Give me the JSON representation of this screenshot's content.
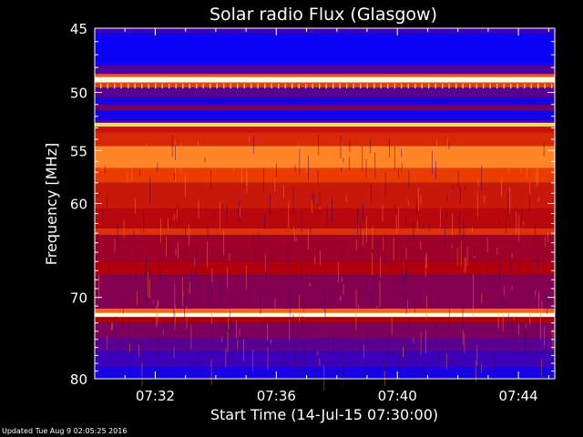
{
  "chart_data": {
    "type": "heatmap",
    "title": "Solar radio Flux (Glasgow)",
    "xlabel": "Start Time (14-Jul-15 07:30:00)",
    "ylabel": "Frequency [MHz]",
    "x_unit": "minutes after 07:30:00",
    "xlim": [
      0,
      15.2
    ],
    "ylim": [
      45,
      80
    ],
    "y_scale": "log",
    "x_ticks": [
      {
        "value": 2,
        "label": "07:32"
      },
      {
        "value": 6,
        "label": "07:36"
      },
      {
        "value": 10,
        "label": "07:40"
      },
      {
        "value": 14,
        "label": "07:44"
      }
    ],
    "y_ticks": [
      {
        "value": 45,
        "label": "45"
      },
      {
        "value": 50,
        "label": "50"
      },
      {
        "value": 55,
        "label": "55"
      },
      {
        "value": 60,
        "label": "60"
      },
      {
        "value": 70,
        "label": "70"
      },
      {
        "value": 80,
        "label": "80"
      }
    ],
    "colormap": [
      "#0000ff",
      "#5a0090",
      "#b00010",
      "#ff5000",
      "#ffff80",
      "#ffffff"
    ],
    "bands": [
      {
        "from": 45.0,
        "to": 45.4,
        "level": 0.12
      },
      {
        "from": 45.4,
        "to": 47.8,
        "level": 0.02
      },
      {
        "from": 47.8,
        "to": 48.5,
        "level": 0.18
      },
      {
        "from": 48.5,
        "to": 48.75,
        "level": 0.6
      },
      {
        "from": 48.75,
        "to": 49.2,
        "level": 0.97
      },
      {
        "from": 49.2,
        "to": 49.6,
        "level": 0.55
      },
      {
        "from": 49.6,
        "to": 50.4,
        "level": 0.2
      },
      {
        "from": 50.4,
        "to": 51.0,
        "level": 0.05
      },
      {
        "from": 51.0,
        "to": 51.5,
        "level": 0.25
      },
      {
        "from": 51.5,
        "to": 52.3,
        "level": 0.04
      },
      {
        "from": 52.3,
        "to": 52.55,
        "level": 0.15
      },
      {
        "from": 52.55,
        "to": 52.9,
        "level": 0.75
      },
      {
        "from": 52.9,
        "to": 53.4,
        "level": 0.45
      },
      {
        "from": 53.4,
        "to": 54.6,
        "level": 0.5
      },
      {
        "from": 54.6,
        "to": 56.6,
        "level": 0.66
      },
      {
        "from": 56.6,
        "to": 58.0,
        "level": 0.55
      },
      {
        "from": 58.0,
        "to": 60.5,
        "level": 0.46
      },
      {
        "from": 60.5,
        "to": 62.5,
        "level": 0.42
      },
      {
        "from": 62.5,
        "to": 63.2,
        "level": 0.52
      },
      {
        "from": 63.2,
        "to": 66.0,
        "level": 0.36
      },
      {
        "from": 66.0,
        "to": 67.5,
        "level": 0.4
      },
      {
        "from": 67.5,
        "to": 71.3,
        "level": 0.3
      },
      {
        "from": 71.3,
        "to": 71.8,
        "level": 0.62
      },
      {
        "from": 71.8,
        "to": 72.3,
        "level": 0.95
      },
      {
        "from": 72.3,
        "to": 73.0,
        "level": 0.4
      },
      {
        "from": 73.0,
        "to": 74.8,
        "level": 0.28
      },
      {
        "from": 74.8,
        "to": 76.5,
        "level": 0.2
      },
      {
        "from": 76.5,
        "to": 78.5,
        "level": 0.13
      },
      {
        "from": 78.5,
        "to": 80.0,
        "level": 0.05
      }
    ],
    "grid": false,
    "legend": "none"
  },
  "footer": {
    "updated_text": "Updated Tue Aug  9 02:05:25 2016"
  }
}
